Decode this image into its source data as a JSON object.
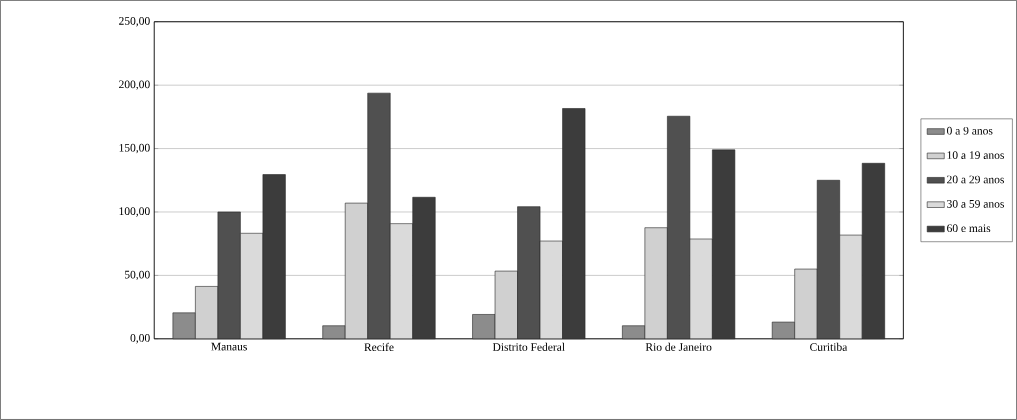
{
  "chart_data": {
    "type": "bar",
    "categories": [
      "Manaus",
      "Recife",
      "Distrito Federal",
      "Rio de Janeiro",
      "Curitiba"
    ],
    "series": [
      {
        "name": "0 a 9 anos",
        "color": "#8c8c8c",
        "values": [
          20.5,
          10.3,
          19.2,
          10.3,
          13.2
        ]
      },
      {
        "name": "10 a 19 anos",
        "color": "#d0d0d0",
        "values": [
          41.3,
          107,
          53.4,
          87.6,
          55
        ]
      },
      {
        "name": "20 a 29 anos",
        "color": "#505050",
        "values": [
          100,
          193.7,
          104.2,
          175.5,
          125
        ]
      },
      {
        "name": "30 a 59 anos",
        "color": "#dadada",
        "values": [
          83.2,
          90.8,
          77.1,
          78.7,
          81.8
        ]
      },
      {
        "name": "60 e mais",
        "color": "#3c3c3c",
        "values": [
          129.5,
          111.6,
          181.6,
          149,
          138.4
        ]
      }
    ],
    "ylim": [
      0,
      250
    ],
    "yticks": [
      {
        "value": 0,
        "label": "0,00"
      },
      {
        "value": 50,
        "label": "50,00"
      },
      {
        "value": 100,
        "label": "100,00"
      },
      {
        "value": 150,
        "label": "150,00"
      },
      {
        "value": 200,
        "label": "200,00"
      },
      {
        "value": 250,
        "label": "250,00"
      }
    ],
    "grid": "y",
    "legend": "right"
  }
}
